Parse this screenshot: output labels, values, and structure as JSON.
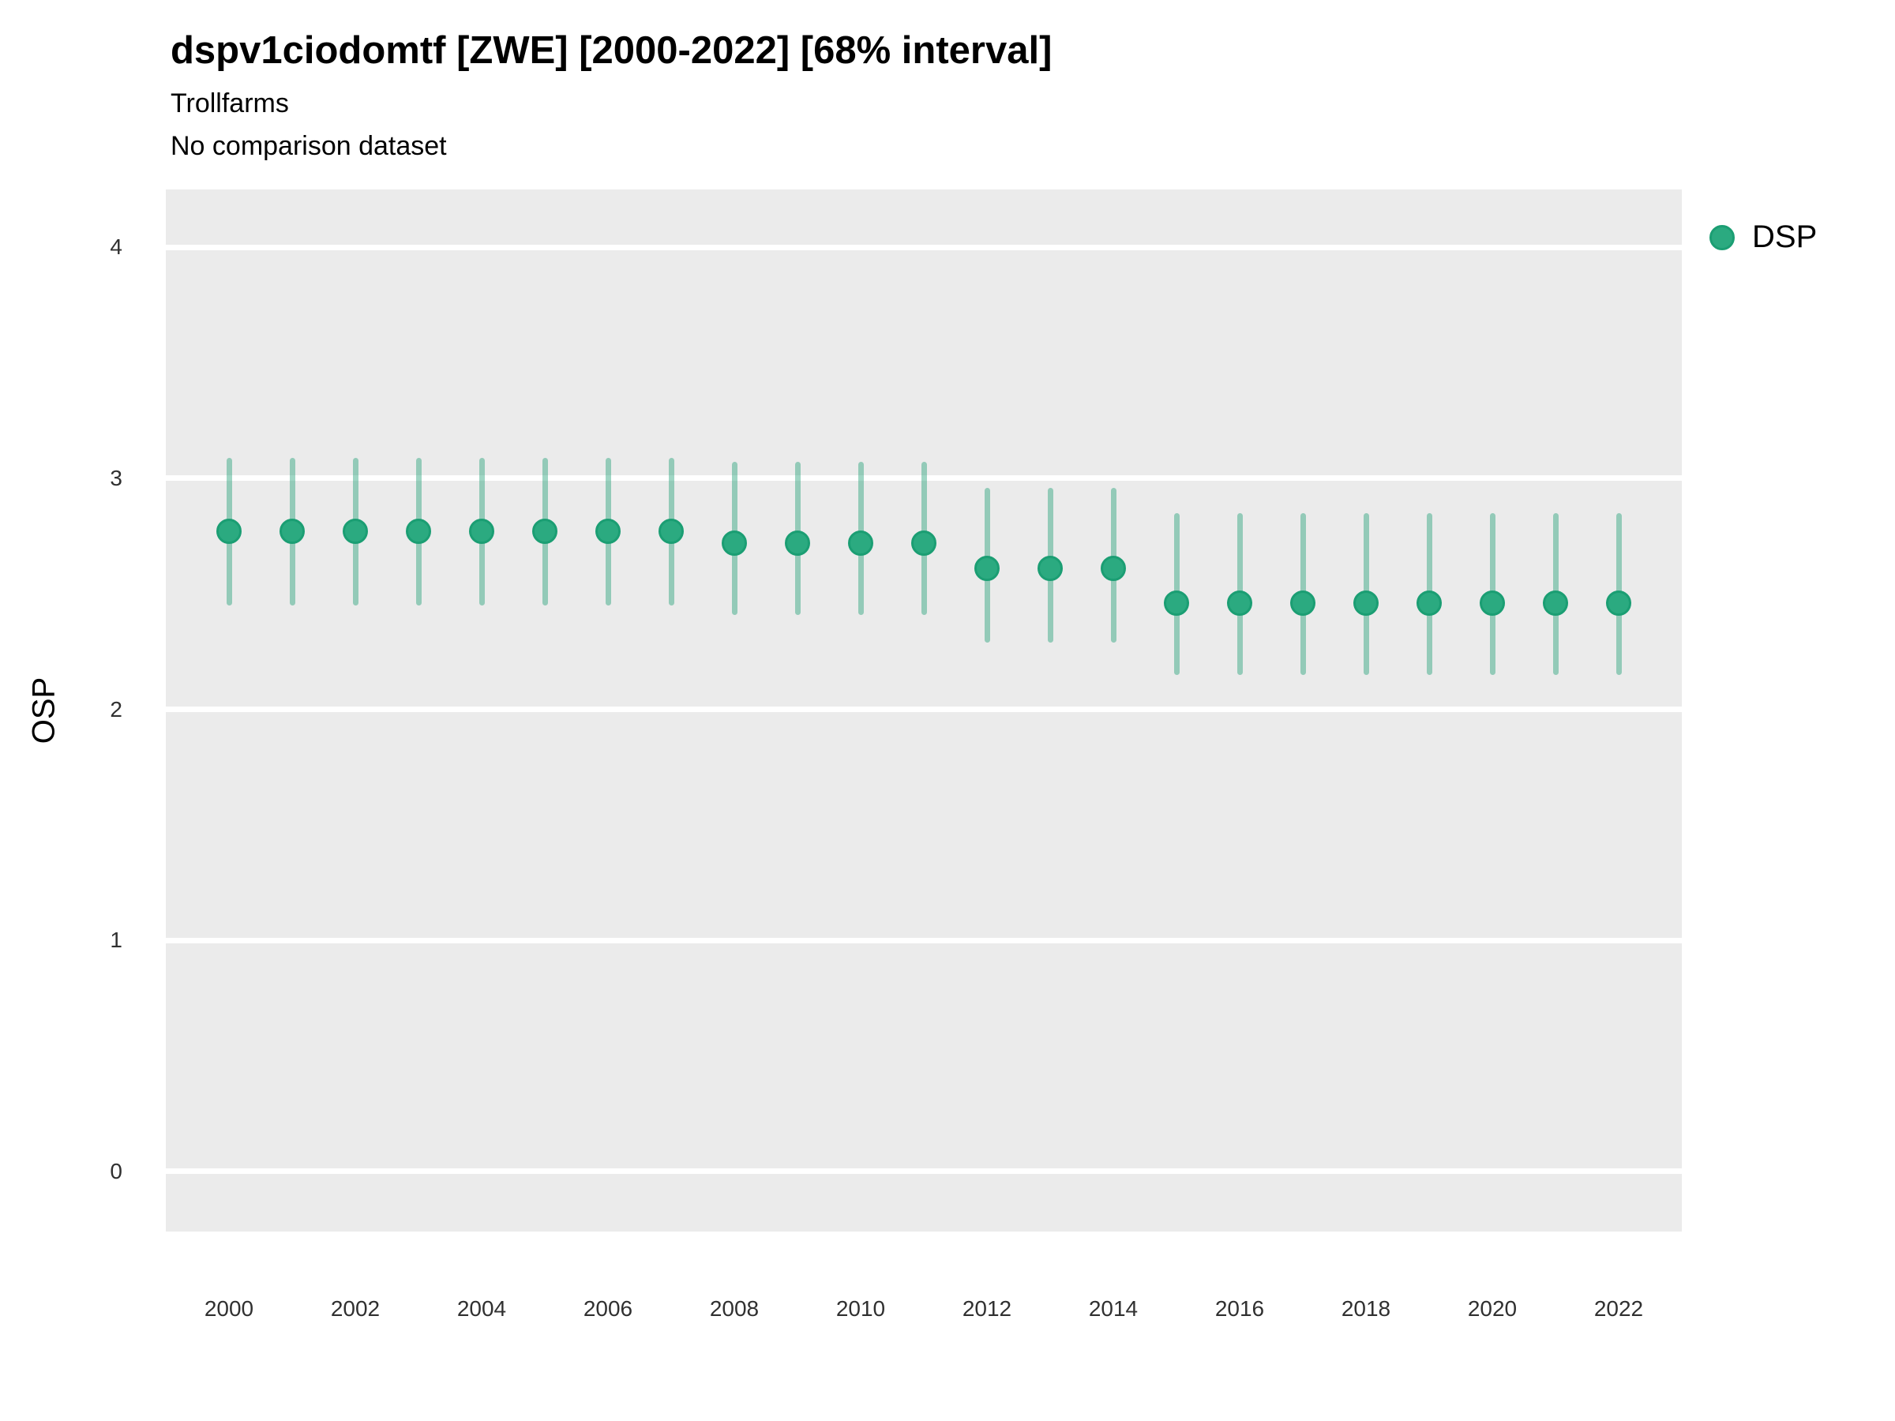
{
  "header": {
    "title": "dspv1ciodomtf [ZWE] [2000-2022] [68% interval]",
    "subtitle": "Trollfarms",
    "comparison_note": "No comparison dataset"
  },
  "legend": {
    "label": "DSP",
    "position": "right-top"
  },
  "colors": {
    "point_fill": "#2baa80",
    "point_stroke": "#1b9e73",
    "errorbar": "rgba(27, 158, 115, 0.42)",
    "panel_background": "#ebebeb",
    "gridline": "#ffffff",
    "tick_text": "#303030",
    "text": "#000000"
  },
  "chart_data": {
    "type": "pointrange",
    "title": "dspv1ciodomtf [ZWE] [2000-2022] [68% interval]",
    "subtitle": "Trollfarms",
    "note": "No comparison dataset",
    "interval": "68%",
    "xlabel": "",
    "ylabel": "OSP",
    "x": [
      2000,
      2001,
      2002,
      2003,
      2004,
      2005,
      2006,
      2007,
      2008,
      2009,
      2010,
      2011,
      2012,
      2013,
      2014,
      2015,
      2016,
      2017,
      2018,
      2019,
      2020,
      2021,
      2022
    ],
    "series": [
      {
        "name": "DSP",
        "values": [
          2.77,
          2.77,
          2.77,
          2.77,
          2.77,
          2.77,
          2.77,
          2.77,
          2.72,
          2.72,
          2.72,
          2.72,
          2.61,
          2.61,
          2.61,
          2.46,
          2.46,
          2.46,
          2.46,
          2.46,
          2.46,
          2.46,
          2.46
        ],
        "lower": [
          2.45,
          2.45,
          2.45,
          2.45,
          2.45,
          2.45,
          2.45,
          2.45,
          2.41,
          2.41,
          2.41,
          2.41,
          2.29,
          2.29,
          2.29,
          2.15,
          2.15,
          2.15,
          2.15,
          2.15,
          2.15,
          2.15,
          2.15
        ],
        "upper": [
          3.09,
          3.09,
          3.09,
          3.09,
          3.09,
          3.09,
          3.09,
          3.09,
          3.07,
          3.07,
          3.07,
          3.07,
          2.96,
          2.96,
          2.96,
          2.85,
          2.85,
          2.85,
          2.85,
          2.85,
          2.85,
          2.85,
          2.85
        ]
      }
    ],
    "ylim": [
      -0.26,
      4.25
    ],
    "yticks": [
      0,
      1,
      2,
      3,
      4
    ],
    "xticks": [
      2000,
      2002,
      2004,
      2006,
      2008,
      2010,
      2012,
      2014,
      2016,
      2018,
      2020,
      2022
    ],
    "grid": "horizontal-major-only",
    "legend_position": "right-top"
  }
}
